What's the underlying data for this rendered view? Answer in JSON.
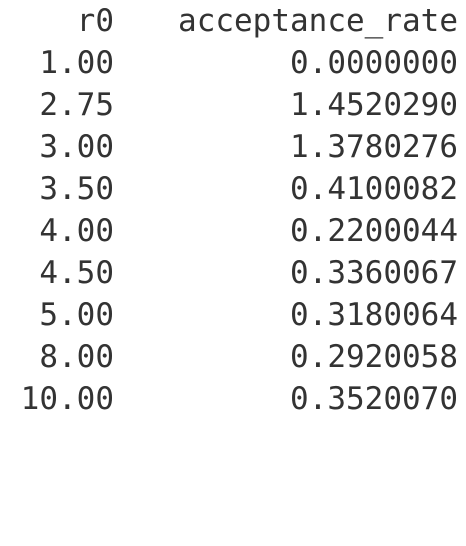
{
  "columns": [
    "r0",
    "acceptance_rate"
  ],
  "rows": [
    [
      "1.00",
      "0.0000000"
    ],
    [
      "2.75",
      "1.4520290"
    ],
    [
      "3.00",
      "1.3780276"
    ],
    [
      "3.50",
      "0.4100082"
    ],
    [
      "4.00",
      "0.2200044"
    ],
    [
      "4.50",
      "0.3360067"
    ],
    [
      "5.00",
      "0.3180064"
    ],
    [
      "8.00",
      "0.2920058"
    ],
    [
      "10.00",
      "0.3520070"
    ]
  ],
  "colors": {
    "text": "#333333",
    "background": "#ffffff"
  }
}
